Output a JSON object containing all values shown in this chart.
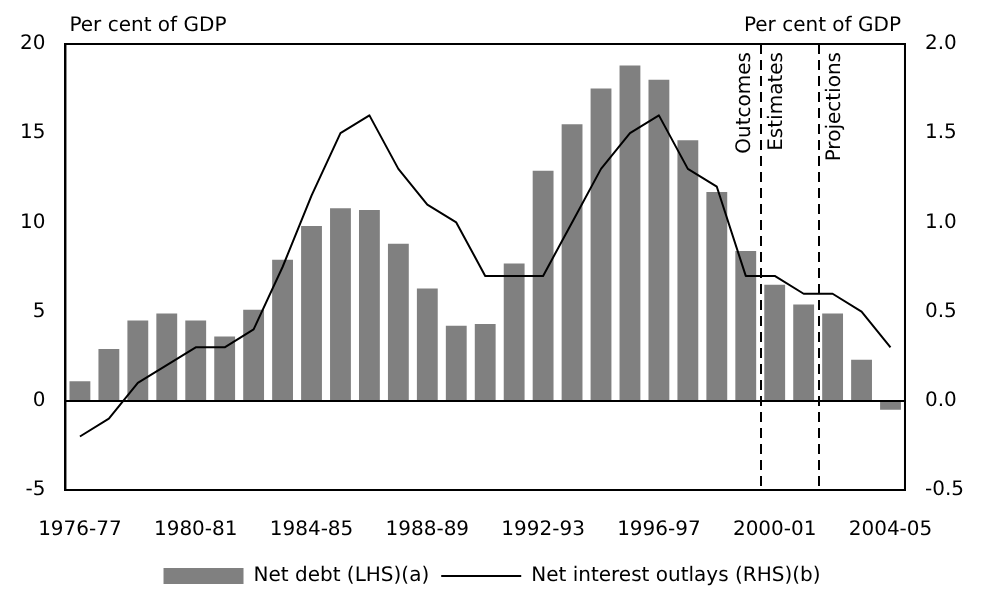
{
  "chart_data": {
    "type": "bar",
    "ylabel": "Per cent of GDP",
    "y2label": "Per cent of GDP",
    "categories": [
      "1976-77",
      null,
      null,
      null,
      "1980-81",
      null,
      null,
      null,
      "1984-85",
      null,
      null,
      null,
      "1988-89",
      null,
      null,
      null,
      "1992-93",
      null,
      null,
      null,
      "1996-97",
      null,
      null,
      null,
      "2000-01",
      null,
      null,
      null,
      "2004-05"
    ],
    "series": [
      {
        "name": "Net debt (LHS)(a)",
        "color": "#808080",
        "values": [
          1.1,
          2.9,
          4.5,
          4.9,
          4.5,
          3.6,
          5.1,
          7.9,
          9.8,
          10.8,
          10.7,
          8.8,
          6.3,
          4.2,
          4.3,
          7.7,
          12.9,
          15.5,
          17.5,
          18.8,
          18.0,
          14.6,
          11.7,
          8.4,
          6.5,
          5.4,
          4.9,
          2.3,
          -0.5
        ]
      },
      {
        "name": "Net interest outlays (RHS)(b)",
        "type": "line",
        "axis": "y2",
        "color": "#000000",
        "values": [
          -0.2,
          -0.1,
          0.1,
          0.2,
          0.3,
          0.3,
          0.4,
          0.75,
          1.15,
          1.5,
          1.6,
          1.3,
          1.1,
          1.0,
          0.7,
          0.7,
          0.7,
          1.0,
          1.3,
          1.5,
          1.6,
          1.3,
          1.2,
          0.7,
          0.7,
          0.6,
          0.6,
          0.5,
          0.3
        ]
      }
    ],
    "ylim": [
      -5,
      20
    ],
    "yticks": [
      -5,
      0,
      5,
      10,
      15,
      20
    ],
    "y2lim": [
      -0.5,
      2.0
    ],
    "y2ticks": [
      {
        "value": -0.5,
        "label": "-0.5"
      },
      {
        "value": 0,
        "label": "0.0"
      },
      {
        "value": 0.5,
        "label": "0.5"
      },
      {
        "value": 1,
        "label": "1.0"
      },
      {
        "value": 1.5,
        "label": "1.5"
      },
      {
        "value": 2,
        "label": "2.0"
      }
    ],
    "annotations": [
      "Outcomes",
      "Estimates",
      "Projections"
    ],
    "grid": false,
    "legend": "bottom",
    "marker": "none",
    "line_style": "solid"
  }
}
